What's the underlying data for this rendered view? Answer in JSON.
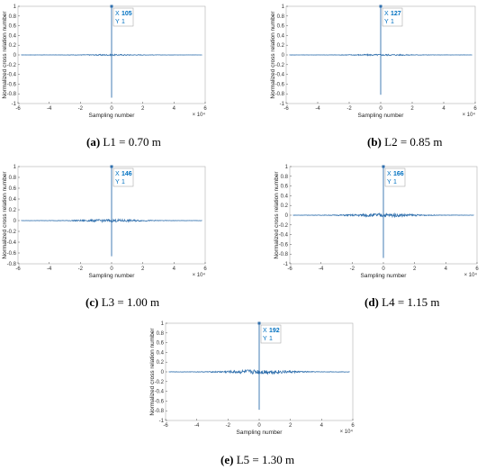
{
  "style": {
    "line_color": "#2f6fad",
    "datatip_text_color": "#0070c0"
  },
  "chart_data": [
    {
      "type": "line",
      "caption_label": "(a)",
      "caption_text": "L1 = 0.70 m",
      "xlabel": "Sampling number",
      "ylabel": "Normalized cross relation number",
      "x_exponent": "× 10⁴",
      "xlim": [
        -6,
        6
      ],
      "ylim": [
        -1,
        1
      ],
      "xticks": [
        "-6",
        "-4",
        "-2",
        "0",
        "2",
        "4",
        "6"
      ],
      "yticks": [
        "-1",
        "-0.8",
        "-0.6",
        "-0.4",
        "-0.2",
        "0",
        "0.2",
        "0.4",
        "0.6",
        "0.8",
        "1"
      ],
      "peak": {
        "x": 0,
        "y": 1
      },
      "min_y": -0.88,
      "baseline_x_range": [
        -5.8,
        5.8
      ],
      "noise": 0.004,
      "datatip": {
        "x_label": "X",
        "x_value": "105",
        "y_label": "Y",
        "y_value": "1"
      }
    },
    {
      "type": "line",
      "caption_label": "(b)",
      "caption_text": "L2 = 0.85 m",
      "xlabel": "Sampling number",
      "ylabel": "Normalized cross relation number",
      "x_exponent": "× 10⁴",
      "xlim": [
        -6,
        6
      ],
      "ylim": [
        -1,
        1
      ],
      "xticks": [
        "-6",
        "-4",
        "-2",
        "0",
        "2",
        "4",
        "6"
      ],
      "yticks": [
        "-1",
        "-0.8",
        "-0.6",
        "-0.4",
        "-0.2",
        "0",
        "0.2",
        "0.4",
        "0.6",
        "0.8",
        "1"
      ],
      "peak": {
        "x": 0,
        "y": 1
      },
      "min_y": -0.82,
      "baseline_x_range": [
        -5.8,
        5.8
      ],
      "noise": 0.005,
      "datatip": {
        "x_label": "X",
        "x_value": "127",
        "y_label": "Y",
        "y_value": "1"
      }
    },
    {
      "type": "line",
      "caption_label": "(c)",
      "caption_text": "L3 = 1.00 m",
      "xlabel": "Sampling number",
      "ylabel": "Normalized cross relation number",
      "x_exponent": "× 10⁴",
      "xlim": [
        -6,
        6
      ],
      "ylim": [
        -0.8,
        1
      ],
      "xticks": [
        "-6",
        "-4",
        "-2",
        "0",
        "2",
        "4",
        "6"
      ],
      "yticks": [
        "-0.8",
        "-0.6",
        "-0.4",
        "-0.2",
        "0",
        "0.2",
        "0.4",
        "0.6",
        "0.8",
        "1"
      ],
      "peak": {
        "x": 0,
        "y": 1
      },
      "min_y": -0.66,
      "baseline_x_range": [
        -5.8,
        5.8
      ],
      "noise": 0.008,
      "datatip": {
        "x_label": "X",
        "x_value": "146",
        "y_label": "Y",
        "y_value": "1"
      }
    },
    {
      "type": "line",
      "caption_label": "(d)",
      "caption_text": "L4 = 1.15 m",
      "xlabel": "Sampling number",
      "ylabel": "Normalized cross relation number",
      "x_exponent": "× 10⁴",
      "xlim": [
        -6,
        6
      ],
      "ylim": [
        -1,
        1
      ],
      "xticks": [
        "-6",
        "-4",
        "-2",
        "0",
        "2",
        "4",
        "6"
      ],
      "yticks": [
        "-1",
        "-0.8",
        "-0.6",
        "-0.4",
        "-0.2",
        "0",
        "0.2",
        "0.4",
        "0.6",
        "0.8",
        "1"
      ],
      "peak": {
        "x": 0,
        "y": 1
      },
      "min_y": -0.88,
      "baseline_x_range": [
        -5.8,
        5.8
      ],
      "noise": 0.012,
      "datatip": {
        "x_label": "X",
        "x_value": "166",
        "y_label": "Y",
        "y_value": "1"
      }
    },
    {
      "type": "line",
      "caption_label": "(e)",
      "caption_text": "L5 = 1.30 m",
      "xlabel": "Sampling number",
      "ylabel": "Normalized cross relation number",
      "x_exponent": "× 10⁴",
      "xlim": [
        -6,
        6
      ],
      "ylim": [
        -1,
        1
      ],
      "xticks": [
        "-6",
        "-4",
        "-2",
        "0",
        "2",
        "4",
        "6"
      ],
      "yticks": [
        "-1",
        "-0.8",
        "-0.6",
        "-0.4",
        "-0.2",
        "0",
        "0.2",
        "0.4",
        "0.6",
        "0.8",
        "1"
      ],
      "peak": {
        "x": 0,
        "y": 1
      },
      "min_y": -0.78,
      "baseline_x_range": [
        -5.8,
        5.8
      ],
      "noise": 0.015,
      "datatip": {
        "x_label": "X",
        "x_value": "192",
        "y_label": "Y",
        "y_value": "1"
      }
    }
  ]
}
